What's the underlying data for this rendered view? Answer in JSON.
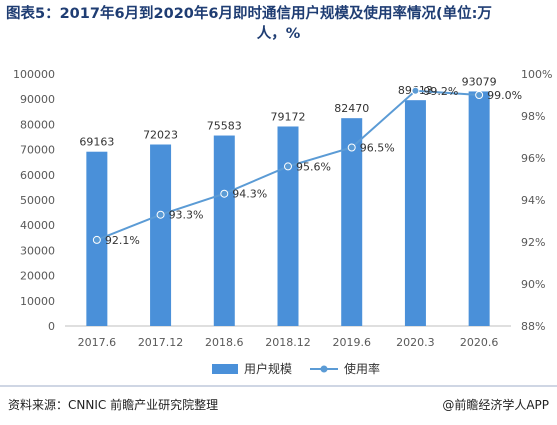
{
  "title": {
    "line1": "图表5：2017年6月到2020年6月即时通信用户规模及使用率情况(单位:万",
    "line2": "人，%"
  },
  "footer": {
    "source": "资料来源：CNNIC 前瞻产业研究院整理",
    "brand": "@前瞻经济学人APP"
  },
  "colors": {
    "bar": "#4a90d9",
    "line": "#5b9bd5",
    "title": "#1f3d73"
  },
  "chart_data": {
    "type": "bar",
    "categories": [
      "2017.6",
      "2017.12",
      "2018.6",
      "2018.12",
      "2019.6",
      "2020.3",
      "2020.6"
    ],
    "series": [
      {
        "name": "用户规模",
        "type": "bar",
        "axis": "left",
        "values": [
          69163,
          72023,
          75583,
          79172,
          82470,
          89613,
          93079
        ],
        "labels": [
          "69163",
          "72023",
          "75583",
          "79172",
          "82470",
          "89613",
          "93079"
        ]
      },
      {
        "name": "使用率",
        "type": "line",
        "axis": "right",
        "values": [
          92.1,
          93.3,
          94.3,
          95.6,
          96.5,
          99.2,
          99.0
        ],
        "labels": [
          "92.1%",
          "93.3%",
          "94.3%",
          "95.6%",
          "96.5%",
          "99.2%",
          "99.0%"
        ]
      }
    ],
    "left_axis": {
      "ylim": [
        0,
        100000
      ],
      "ticks": [
        "0",
        "10000",
        "20000",
        "30000",
        "40000",
        "50000",
        "60000",
        "70000",
        "80000",
        "90000",
        "100000"
      ]
    },
    "right_axis": {
      "ylim": [
        88,
        100
      ],
      "ticks": [
        "88%",
        "90%",
        "92%",
        "94%",
        "96%",
        "98%",
        "100%"
      ]
    },
    "legend_position": "bottom",
    "grid": false
  }
}
